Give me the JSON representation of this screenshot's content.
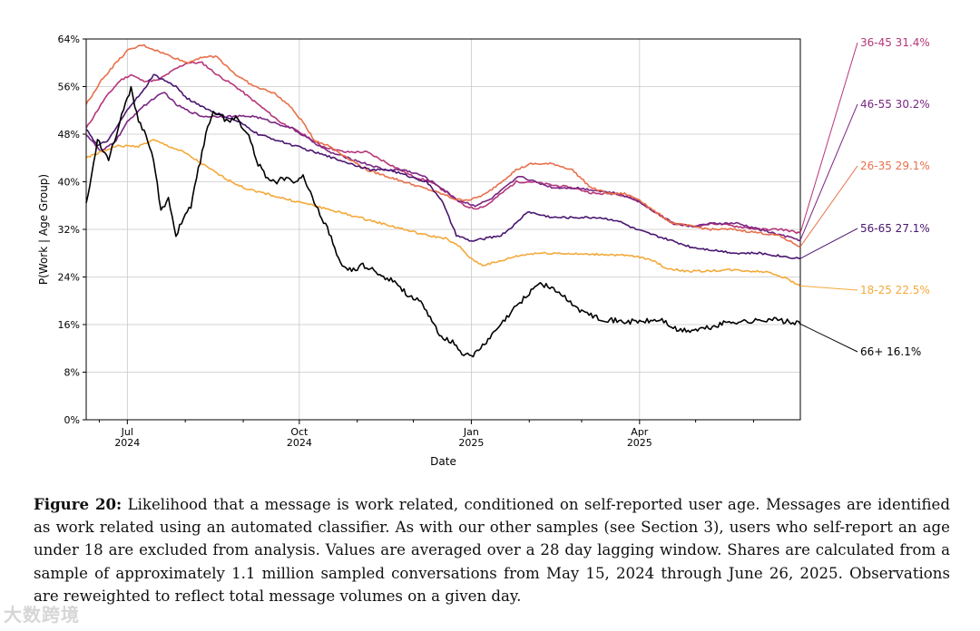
{
  "chart_data": {
    "type": "line",
    "title": "",
    "xlabel": "Date",
    "ylabel": "P(Work | Age Group)",
    "ylim": [
      0,
      64
    ],
    "y_ticks": [
      "0%",
      "8%",
      "16%",
      "24%",
      "32%",
      "40%",
      "48%",
      "56%",
      "64%"
    ],
    "y_tick_values": [
      0,
      8,
      16,
      24,
      32,
      40,
      48,
      56,
      64
    ],
    "x_range_days": [
      -22,
      360
    ],
    "x_ticks": [
      {
        "day": 0,
        "label1": "Jul",
        "label2": "2024"
      },
      {
        "day": 92,
        "label1": "Oct",
        "label2": "2024"
      },
      {
        "day": 184,
        "label1": "Jan",
        "label2": "2025"
      },
      {
        "day": 274,
        "label1": "Apr",
        "label2": "2025"
      }
    ],
    "x_minor_ticks": [
      -15,
      31,
      62,
      123,
      153,
      215,
      243,
      304,
      335
    ],
    "grid": true,
    "legend_placement": "right",
    "series": [
      {
        "name": "36-45",
        "label": "36-45 31.4%",
        "color": "#b5367a",
        "keyframes": [
          [
            -22,
            49
          ],
          [
            -12,
            54
          ],
          [
            -4,
            57
          ],
          [
            2,
            58
          ],
          [
            8,
            57
          ],
          [
            16,
            57
          ],
          [
            26,
            59
          ],
          [
            32,
            60
          ],
          [
            40,
            60
          ],
          [
            48,
            58
          ],
          [
            58,
            56
          ],
          [
            70,
            53
          ],
          [
            82,
            50
          ],
          [
            94,
            48
          ],
          [
            104,
            46
          ],
          [
            116,
            45
          ],
          [
            128,
            45
          ],
          [
            140,
            43
          ],
          [
            152,
            41
          ],
          [
            162,
            40
          ],
          [
            172,
            38
          ],
          [
            180,
            36
          ],
          [
            186,
            35.5
          ],
          [
            192,
            36
          ],
          [
            200,
            38
          ],
          [
            208,
            40
          ],
          [
            216,
            40
          ],
          [
            226,
            39.5
          ],
          [
            238,
            39
          ],
          [
            250,
            38
          ],
          [
            262,
            38
          ],
          [
            272,
            37
          ],
          [
            282,
            35
          ],
          [
            292,
            33
          ],
          [
            302,
            32.5
          ],
          [
            314,
            33
          ],
          [
            326,
            32.5
          ],
          [
            338,
            32
          ],
          [
            350,
            32
          ],
          [
            360,
            31.4
          ]
        ]
      },
      {
        "name": "46-55",
        "label": "46-55 30.2%",
        "color": "#7b2583",
        "keyframes": [
          [
            -22,
            48
          ],
          [
            -14,
            45
          ],
          [
            -6,
            47
          ],
          [
            0,
            50
          ],
          [
            6,
            52
          ],
          [
            14,
            54
          ],
          [
            20,
            55
          ],
          [
            26,
            53
          ],
          [
            32,
            52
          ],
          [
            40,
            51
          ],
          [
            48,
            51
          ],
          [
            58,
            51
          ],
          [
            68,
            51
          ],
          [
            78,
            50
          ],
          [
            88,
            49
          ],
          [
            98,
            47
          ],
          [
            108,
            45
          ],
          [
            118,
            44
          ],
          [
            128,
            43
          ],
          [
            138,
            42
          ],
          [
            148,
            42
          ],
          [
            158,
            41
          ],
          [
            168,
            39
          ],
          [
            176,
            37
          ],
          [
            186,
            36
          ],
          [
            194,
            37
          ],
          [
            202,
            39
          ],
          [
            210,
            41
          ],
          [
            218,
            40
          ],
          [
            228,
            39
          ],
          [
            240,
            39
          ],
          [
            252,
            38.5
          ],
          [
            262,
            38
          ],
          [
            272,
            37
          ],
          [
            282,
            35
          ],
          [
            292,
            33
          ],
          [
            302,
            32.5
          ],
          [
            314,
            33
          ],
          [
            326,
            33
          ],
          [
            338,
            32
          ],
          [
            350,
            31
          ],
          [
            360,
            30.2
          ]
        ]
      },
      {
        "name": "26-35",
        "label": "26-35 29.1%",
        "color": "#e8704a",
        "keyframes": [
          [
            -22,
            53
          ],
          [
            -14,
            57
          ],
          [
            -6,
            60
          ],
          [
            0,
            62
          ],
          [
            8,
            63
          ],
          [
            16,
            62
          ],
          [
            24,
            61
          ],
          [
            32,
            60
          ],
          [
            40,
            61
          ],
          [
            48,
            61
          ],
          [
            58,
            58
          ],
          [
            68,
            56
          ],
          [
            78,
            55
          ],
          [
            86,
            53
          ],
          [
            94,
            50
          ],
          [
            100,
            47
          ],
          [
            108,
            46
          ],
          [
            118,
            44
          ],
          [
            128,
            42
          ],
          [
            138,
            41
          ],
          [
            148,
            40
          ],
          [
            158,
            39
          ],
          [
            168,
            38
          ],
          [
            176,
            37
          ],
          [
            184,
            37
          ],
          [
            192,
            38
          ],
          [
            200,
            40
          ],
          [
            208,
            42
          ],
          [
            216,
            43
          ],
          [
            228,
            43
          ],
          [
            238,
            42
          ],
          [
            248,
            39
          ],
          [
            258,
            38
          ],
          [
            266,
            38
          ],
          [
            274,
            37
          ],
          [
            282,
            35
          ],
          [
            292,
            33
          ],
          [
            302,
            32.5
          ],
          [
            312,
            32
          ],
          [
            324,
            32
          ],
          [
            336,
            31.5
          ],
          [
            348,
            31
          ],
          [
            360,
            29.1
          ]
        ]
      },
      {
        "name": "56-65",
        "label": "56-65 27.1%",
        "color": "#4a1670",
        "keyframes": [
          [
            -22,
            49
          ],
          [
            -16,
            46
          ],
          [
            -10,
            47
          ],
          [
            -4,
            50
          ],
          [
            2,
            53
          ],
          [
            8,
            55
          ],
          [
            14,
            58
          ],
          [
            20,
            57
          ],
          [
            26,
            56
          ],
          [
            32,
            54
          ],
          [
            38,
            53
          ],
          [
            44,
            52
          ],
          [
            52,
            51
          ],
          [
            60,
            50
          ],
          [
            70,
            48
          ],
          [
            80,
            47
          ],
          [
            90,
            46
          ],
          [
            100,
            45
          ],
          [
            110,
            44
          ],
          [
            120,
            43
          ],
          [
            130,
            42
          ],
          [
            140,
            42
          ],
          [
            150,
            41
          ],
          [
            160,
            40
          ],
          [
            168,
            37
          ],
          [
            176,
            31
          ],
          [
            184,
            30
          ],
          [
            192,
            30.5
          ],
          [
            200,
            31
          ],
          [
            208,
            33
          ],
          [
            214,
            35
          ],
          [
            220,
            34.5
          ],
          [
            228,
            34
          ],
          [
            240,
            34
          ],
          [
            252,
            34
          ],
          [
            262,
            33.5
          ],
          [
            272,
            32
          ],
          [
            282,
            31
          ],
          [
            292,
            30
          ],
          [
            302,
            29
          ],
          [
            314,
            28.5
          ],
          [
            326,
            28
          ],
          [
            338,
            28
          ],
          [
            350,
            27.5
          ],
          [
            360,
            27.1
          ]
        ]
      },
      {
        "name": "18-25",
        "label": "18-25 22.5%",
        "color": "#f4a93a",
        "keyframes": [
          [
            -22,
            44
          ],
          [
            -14,
            45
          ],
          [
            -6,
            46
          ],
          [
            0,
            46
          ],
          [
            6,
            46
          ],
          [
            14,
            47
          ],
          [
            22,
            46
          ],
          [
            30,
            45
          ],
          [
            40,
            43
          ],
          [
            50,
            41
          ],
          [
            62,
            39
          ],
          [
            74,
            38
          ],
          [
            86,
            37
          ],
          [
            100,
            36
          ],
          [
            112,
            35
          ],
          [
            124,
            34
          ],
          [
            136,
            33
          ],
          [
            148,
            32
          ],
          [
            160,
            31
          ],
          [
            170,
            30.5
          ],
          [
            178,
            29
          ],
          [
            184,
            27
          ],
          [
            190,
            26
          ],
          [
            198,
            26.5
          ],
          [
            208,
            27.5
          ],
          [
            218,
            28
          ],
          [
            230,
            28
          ],
          [
            244,
            27.8
          ],
          [
            256,
            27.8
          ],
          [
            270,
            27.5
          ],
          [
            280,
            27
          ],
          [
            288,
            25.5
          ],
          [
            298,
            25
          ],
          [
            310,
            25
          ],
          [
            322,
            25.2
          ],
          [
            334,
            25
          ],
          [
            344,
            24.8
          ],
          [
            352,
            23.8
          ],
          [
            360,
            22.5
          ]
        ]
      },
      {
        "name": "66+",
        "label": "66+ 16.1%",
        "color": "#000000",
        "keyframes": [
          [
            -22,
            36
          ],
          [
            -16,
            47
          ],
          [
            -10,
            44
          ],
          [
            -4,
            50
          ],
          [
            2,
            56
          ],
          [
            6,
            50
          ],
          [
            10,
            48
          ],
          [
            14,
            44
          ],
          [
            18,
            35
          ],
          [
            22,
            37
          ],
          [
            26,
            31
          ],
          [
            30,
            34
          ],
          [
            34,
            36
          ],
          [
            38,
            42
          ],
          [
            42,
            48
          ],
          [
            46,
            52
          ],
          [
            50,
            51
          ],
          [
            54,
            50
          ],
          [
            58,
            51
          ],
          [
            62,
            49
          ],
          [
            66,
            47
          ],
          [
            70,
            43
          ],
          [
            74,
            41
          ],
          [
            80,
            40
          ],
          [
            86,
            41
          ],
          [
            90,
            40
          ],
          [
            94,
            41
          ],
          [
            98,
            38
          ],
          [
            104,
            34
          ],
          [
            110,
            30
          ],
          [
            114,
            26
          ],
          [
            120,
            25
          ],
          [
            126,
            26
          ],
          [
            132,
            25
          ],
          [
            138,
            24
          ],
          [
            144,
            23
          ],
          [
            150,
            21
          ],
          [
            156,
            20
          ],
          [
            162,
            17
          ],
          [
            168,
            14
          ],
          [
            174,
            13
          ],
          [
            180,
            11
          ],
          [
            186,
            11
          ],
          [
            192,
            13
          ],
          [
            200,
            16
          ],
          [
            208,
            19
          ],
          [
            214,
            21
          ],
          [
            220,
            23
          ],
          [
            228,
            22
          ],
          [
            236,
            20
          ],
          [
            244,
            18
          ],
          [
            254,
            17
          ],
          [
            264,
            16.5
          ],
          [
            276,
            16.5
          ],
          [
            286,
            16.8
          ],
          [
            294,
            15
          ],
          [
            302,
            15
          ],
          [
            312,
            15.5
          ],
          [
            322,
            16.5
          ],
          [
            334,
            16.5
          ],
          [
            344,
            17
          ],
          [
            352,
            16.5
          ],
          [
            360,
            16.1
          ]
        ]
      }
    ]
  },
  "caption": {
    "label": "Figure 20:",
    "text": " Likelihood that a message is work related, conditioned on self-reported user age. Messages are identified as work related using an automated classifier. As with our other samples (see Section 3), users who self-report an age under 18 are excluded from analysis. Values are averaged over a 28 day lagging window. Shares are calculated from a sample of approximately 1.1 million sampled conversations from May 15, 2024 through June 26, 2025. Observations are reweighted to reflect total message volumes on a given day."
  },
  "watermark": "大数跨境"
}
